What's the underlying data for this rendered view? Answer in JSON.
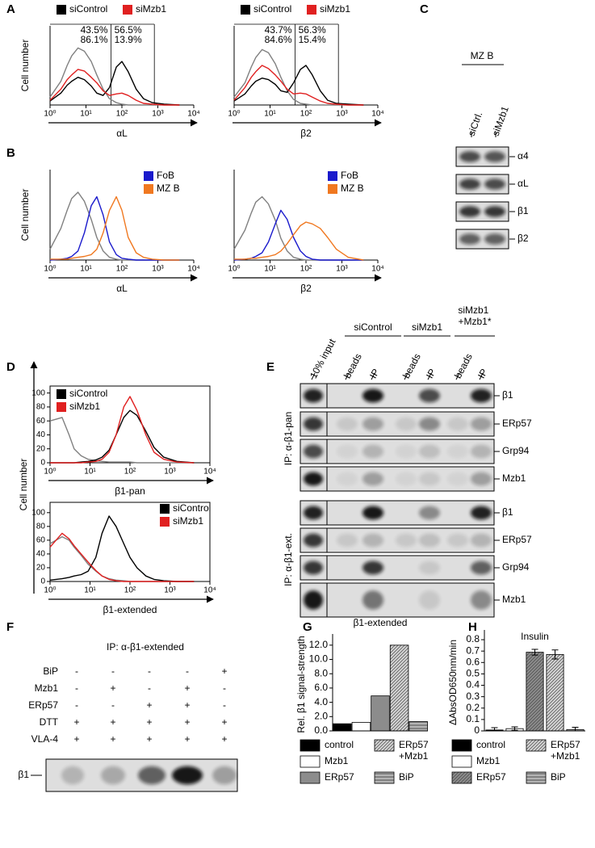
{
  "panel_letters": [
    "A",
    "B",
    "C",
    "D",
    "E",
    "F",
    "G",
    "H"
  ],
  "d_ylabel": "Cell number",
  "chart_data": [
    {
      "type": "histogram",
      "xlabel": "αL",
      "ylabel": "Cell number",
      "legend": "top-outside",
      "frame": false,
      "xlim": [
        1,
        10000
      ],
      "ylim": [
        0,
        100
      ],
      "xticks": [
        {
          "value": 1,
          "label": "10⁰"
        },
        {
          "value": 10,
          "label": "10¹"
        },
        {
          "value": 100,
          "label": "10²"
        },
        {
          "value": 1000,
          "label": "10³"
        },
        {
          "value": 10000,
          "label": "10⁴"
        }
      ],
      "x": [
        1,
        2,
        3,
        4,
        6,
        9,
        14,
        20,
        30,
        45,
        70,
        100,
        150,
        250,
        400,
        700,
        1500,
        4000
      ],
      "gates": [
        50,
        800
      ],
      "gate_labels": [
        [
          "43.5%",
          "56.5%"
        ],
        [
          "86.1%",
          "13.9%"
        ]
      ],
      "series": [
        {
          "color": "#808080",
          "values": [
            10,
            30,
            50,
            62,
            72,
            68,
            55,
            38,
            20,
            8,
            3,
            1,
            0,
            0,
            0,
            0,
            0,
            0
          ]
        },
        {
          "name": "siControl",
          "color": "#000000",
          "values": [
            5,
            15,
            25,
            30,
            35,
            32,
            24,
            15,
            12,
            22,
            48,
            55,
            42,
            20,
            8,
            3,
            1,
            0
          ]
        },
        {
          "name": "siMzb1",
          "color": "#e02020",
          "values": [
            6,
            20,
            32,
            38,
            45,
            43,
            35,
            28,
            18,
            12,
            14,
            15,
            12,
            6,
            2,
            1,
            0,
            0
          ]
        }
      ]
    },
    {
      "type": "histogram",
      "xlabel": "β2",
      "legend": "top-outside",
      "frame": false,
      "xlim": [
        1,
        10000
      ],
      "ylim": [
        0,
        100
      ],
      "xticks": [
        {
          "value": 1,
          "label": "10⁰"
        },
        {
          "value": 10,
          "label": "10¹"
        },
        {
          "value": 100,
          "label": "10²"
        },
        {
          "value": 1000,
          "label": "10³"
        },
        {
          "value": 10000,
          "label": "10⁴"
        }
      ],
      "x": [
        1,
        2,
        3,
        4,
        6,
        9,
        14,
        20,
        30,
        45,
        70,
        100,
        150,
        250,
        400,
        700,
        1500,
        4000
      ],
      "gates": [
        50,
        800
      ],
      "gate_labels": [
        [
          "43.7%",
          "56.3%"
        ],
        [
          "84.6%",
          "15.4%"
        ]
      ],
      "series": [
        {
          "color": "#808080",
          "values": [
            10,
            28,
            48,
            60,
            70,
            66,
            52,
            35,
            18,
            7,
            2,
            1,
            0,
            0,
            0,
            0,
            0,
            0
          ]
        },
        {
          "name": "siControl",
          "color": "#000000",
          "values": [
            5,
            14,
            24,
            30,
            34,
            32,
            26,
            18,
            16,
            28,
            45,
            50,
            38,
            18,
            6,
            2,
            1,
            0
          ]
        },
        {
          "name": "siMzb1",
          "color": "#e02020",
          "values": [
            6,
            22,
            35,
            42,
            50,
            46,
            38,
            30,
            20,
            14,
            15,
            14,
            10,
            5,
            2,
            1,
            0,
            0
          ]
        }
      ]
    },
    {
      "type": "histogram",
      "xlabel": "αL",
      "ylabel": "Cell number",
      "legend": "top-right",
      "frame": false,
      "xlim": [
        1,
        10000
      ],
      "ylim": [
        0,
        100
      ],
      "xticks": [
        {
          "value": 1,
          "label": "10⁰"
        },
        {
          "value": 10,
          "label": "10¹"
        },
        {
          "value": 100,
          "label": "10²"
        },
        {
          "value": 1000,
          "label": "10³"
        },
        {
          "value": 10000,
          "label": "10⁴"
        }
      ],
      "x": [
        1,
        2,
        3,
        4,
        6,
        9,
        14,
        20,
        30,
        45,
        70,
        100,
        150,
        250,
        400,
        700,
        1500,
        4000
      ],
      "series": [
        {
          "color": "#808080",
          "values": [
            12,
            35,
            55,
            68,
            75,
            65,
            45,
            25,
            10,
            3,
            1,
            0,
            0,
            0,
            0,
            0,
            0,
            0
          ]
        },
        {
          "name": "FoB",
          "color": "#1a1acc",
          "values": [
            0,
            1,
            2,
            4,
            10,
            30,
            60,
            70,
            50,
            20,
            6,
            2,
            1,
            0,
            0,
            0,
            0,
            0
          ]
        },
        {
          "name": "MZ B",
          "color": "#f07820",
          "values": [
            1,
            1,
            1,
            2,
            3,
            4,
            6,
            12,
            30,
            55,
            70,
            55,
            25,
            8,
            3,
            1,
            0,
            0
          ]
        }
      ]
    },
    {
      "type": "histogram",
      "xlabel": "β2",
      "legend": "top-right",
      "frame": false,
      "xlim": [
        1,
        10000
      ],
      "ylim": [
        0,
        100
      ],
      "xticks": [
        {
          "value": 1,
          "label": "10⁰"
        },
        {
          "value": 10,
          "label": "10¹"
        },
        {
          "value": 100,
          "label": "10²"
        },
        {
          "value": 1000,
          "label": "10³"
        },
        {
          "value": 10000,
          "label": "10⁴"
        }
      ],
      "x": [
        1,
        2,
        3,
        4,
        6,
        9,
        14,
        20,
        30,
        45,
        70,
        100,
        150,
        250,
        400,
        700,
        1500,
        4000
      ],
      "series": [
        {
          "color": "#808080",
          "values": [
            12,
            33,
            52,
            64,
            70,
            62,
            44,
            24,
            10,
            3,
            1,
            0,
            0,
            0,
            0,
            0,
            0,
            0
          ]
        },
        {
          "name": "FoB",
          "color": "#1a1acc",
          "values": [
            0,
            1,
            2,
            4,
            8,
            20,
            40,
            55,
            45,
            25,
            10,
            4,
            1,
            0,
            0,
            0,
            0,
            0
          ]
        },
        {
          "name": "MZ B",
          "color": "#f07820",
          "values": [
            1,
            1,
            2,
            2,
            3,
            4,
            6,
            10,
            18,
            28,
            38,
            42,
            40,
            35,
            25,
            12,
            3,
            0
          ]
        }
      ]
    },
    {
      "type": "histogram",
      "xlabel": "β1-pan",
      "legend": "top-left",
      "frame": true,
      "xlim": [
        1,
        10000
      ],
      "ylim": [
        0,
        110
      ],
      "yticks": [
        0,
        20,
        40,
        60,
        80,
        100
      ],
      "xticks": [
        {
          "value": 1,
          "label": "10⁰"
        },
        {
          "value": 10,
          "label": "10¹"
        },
        {
          "value": 100,
          "label": "10²"
        },
        {
          "value": 1000,
          "label": "10³"
        },
        {
          "value": 10000,
          "label": "10⁴"
        }
      ],
      "x": [
        1,
        2,
        3,
        4,
        6,
        9,
        14,
        20,
        30,
        45,
        70,
        100,
        150,
        250,
        400,
        700,
        1500,
        4000
      ],
      "series": [
        {
          "color": "#808080",
          "values": [
            60,
            65,
            40,
            20,
            10,
            5,
            3,
            2,
            1,
            1,
            1,
            1,
            0,
            0,
            0,
            0,
            0,
            0
          ]
        },
        {
          "name": "siControl",
          "color": "#000000",
          "values": [
            0,
            0,
            0,
            0,
            1,
            2,
            4,
            8,
            18,
            40,
            65,
            75,
            68,
            45,
            22,
            8,
            2,
            0
          ]
        },
        {
          "name": "siMzb1",
          "color": "#e02020",
          "values": [
            0,
            0,
            0,
            0,
            0,
            1,
            2,
            5,
            15,
            40,
            80,
            95,
            75,
            40,
            15,
            5,
            1,
            0
          ]
        }
      ]
    },
    {
      "type": "histogram",
      "xlabel": "β1-extended",
      "legend": "top-right",
      "frame": true,
      "xlim": [
        1,
        10000
      ],
      "ylim": [
        0,
        115
      ],
      "yticks": [
        0,
        20,
        40,
        60,
        80,
        100
      ],
      "xticks": [
        {
          "value": 1,
          "label": "10⁰"
        },
        {
          "value": 10,
          "label": "10¹"
        },
        {
          "value": 100,
          "label": "10²"
        },
        {
          "value": 1000,
          "label": "10³"
        },
        {
          "value": 10000,
          "label": "10⁴"
        }
      ],
      "x": [
        1,
        2,
        3,
        4,
        6,
        9,
        14,
        20,
        30,
        45,
        70,
        100,
        150,
        250,
        400,
        700,
        1500,
        4000
      ],
      "series": [
        {
          "color": "#808080",
          "values": [
            55,
            65,
            60,
            50,
            38,
            25,
            15,
            8,
            4,
            2,
            1,
            0,
            0,
            0,
            0,
            0,
            0,
            0
          ]
        },
        {
          "name": "siControl",
          "color": "#000000",
          "values": [
            2,
            4,
            6,
            8,
            10,
            15,
            35,
            70,
            95,
            80,
            55,
            35,
            20,
            8,
            3,
            1,
            0,
            0
          ]
        },
        {
          "name": "siMzb1",
          "color": "#e02020",
          "values": [
            50,
            70,
            62,
            52,
            40,
            28,
            16,
            8,
            3,
            1,
            0,
            0,
            0,
            0,
            0,
            0,
            0,
            0
          ]
        }
      ]
    },
    {
      "type": "bar",
      "title": "β1-extended",
      "ylabel": "Rel. β1 signal-strength",
      "categories": [
        "control",
        "Mzb1",
        "ERp57",
        "ERp57 +Mzb1",
        "BiP"
      ],
      "values": [
        1.0,
        1.2,
        4.9,
        12.0,
        1.3
      ],
      "colors": [
        "#000000",
        "#ffffff",
        "#8c8c8c",
        "#d4d4d4",
        "#b4b4b4"
      ],
      "patterns": [
        "solid",
        "solid",
        "solid",
        "diagonal",
        "horizontal"
      ],
      "ylim": [
        0,
        13
      ],
      "yticks": [
        {
          "value": 0,
          "label": "0.0"
        },
        {
          "value": 2,
          "label": "2.0"
        },
        {
          "value": 4,
          "label": "4.0"
        },
        {
          "value": 6,
          "label": "6.0"
        },
        {
          "value": 8,
          "label": "8.0"
        },
        {
          "value": 10,
          "label": "10.0"
        },
        {
          "value": 12,
          "label": "12.0"
        }
      ]
    },
    {
      "type": "bar",
      "title": "Insulin",
      "ylabel": "ΔAbsOD650nm/min",
      "categories": [
        "control",
        "Mzb1",
        "ERp57",
        "ERp57 +Mzb1",
        "BiP"
      ],
      "values": [
        0.008,
        0.02,
        0.69,
        0.67,
        0.012
      ],
      "errors": [
        0.02,
        0.015,
        0.025,
        0.04,
        0.02
      ],
      "colors": [
        "#000000",
        "#ffffff",
        "#8c8c8c",
        "#d4d4d4",
        "#b4b4b4"
      ],
      "patterns": [
        "solid",
        "solid",
        "diagonal",
        "diagonal",
        "horizontal"
      ],
      "ylim": [
        0,
        0.85
      ],
      "yticks": [
        0,
        0.1,
        0.2,
        0.3,
        0.4,
        0.5,
        0.6,
        0.7,
        0.8
      ]
    }
  ],
  "panel_c": {
    "header": "MZ B",
    "lanes": [
      "siCtrl.",
      "siMzb1"
    ],
    "rows": [
      "α4",
      "αL",
      "β1",
      "β2"
    ]
  },
  "panel_e": {
    "groups": [
      "siControl",
      "siMzb1",
      "siMzb1 +Mzb1*"
    ],
    "lanes": [
      "10% input",
      "beads",
      "IP",
      "beads",
      "IP",
      "beads",
      "IP"
    ],
    "rows": [
      "β1",
      "ERp57",
      "Grp94",
      "Mzb1",
      "β1",
      "ERp57",
      "Grp94",
      "Mzb1"
    ],
    "sections": [
      "IP: α-β1-pan",
      "IP: α-β1-ext."
    ]
  },
  "panel_f": {
    "title": "IP: α-β1-extended",
    "band": "β1",
    "rows": [
      {
        "label": "BiP",
        "marks": [
          "-",
          "-",
          "-",
          "-",
          "+"
        ]
      },
      {
        "label": "Mzb1",
        "marks": [
          "-",
          "+",
          "-",
          "+",
          "-"
        ]
      },
      {
        "label": "ERp57",
        "marks": [
          "-",
          "-",
          "+",
          "+",
          "-"
        ]
      },
      {
        "label": "DTT",
        "marks": [
          "+",
          "+",
          "+",
          "+",
          "+"
        ]
      },
      {
        "label": "VLA-4",
        "marks": [
          "+",
          "+",
          "+",
          "+",
          "+"
        ]
      }
    ]
  }
}
